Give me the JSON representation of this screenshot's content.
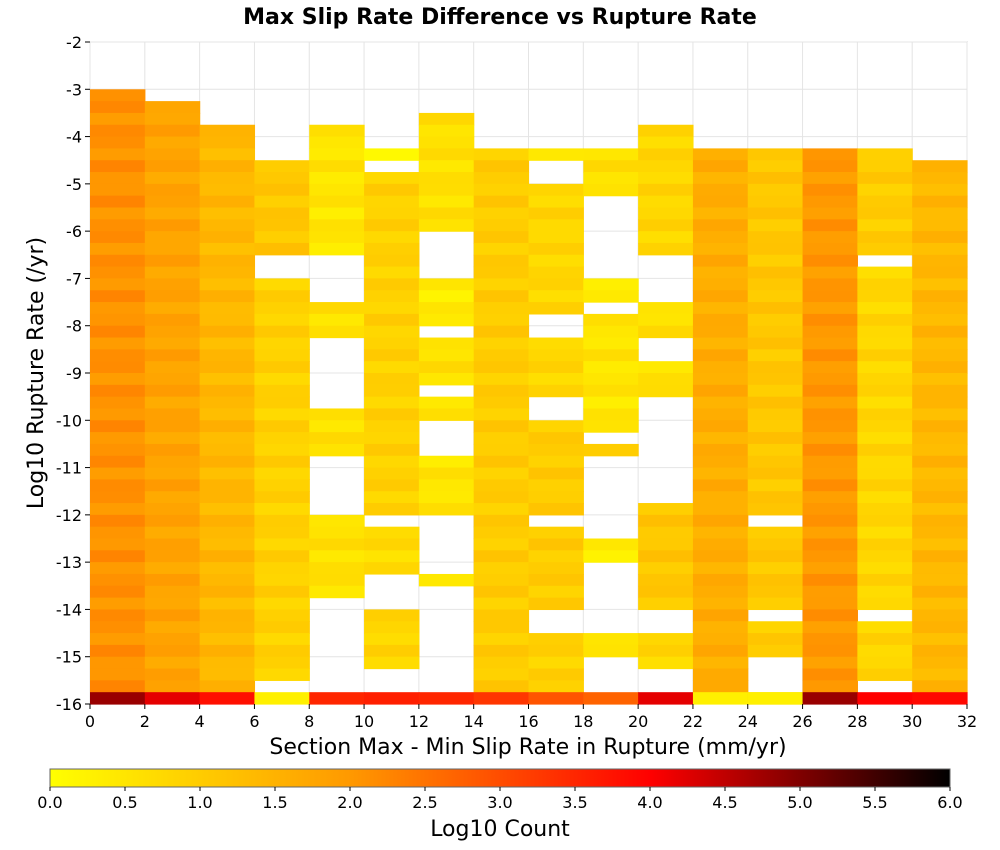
{
  "chart_data": {
    "type": "heatmap",
    "title": "Max Slip Rate Difference vs Rupture Rate",
    "xlabel": "Section Max - Min Slip Rate in Rupture (mm/yr)",
    "ylabel": "Log10 Rupture Rate (/yr)",
    "xlim": [
      0,
      32
    ],
    "ylim": [
      -16,
      -2
    ],
    "x_ticks": [
      "0",
      "2",
      "4",
      "6",
      "8",
      "10",
      "12",
      "14",
      "16",
      "18",
      "20",
      "22",
      "24",
      "26",
      "28",
      "30",
      "32"
    ],
    "y_ticks": [
      "-2",
      "-3",
      "-4",
      "-5",
      "-6",
      "-7",
      "-8",
      "-9",
      "-10",
      "-11",
      "-12",
      "-13",
      "-14",
      "-15",
      "-16"
    ],
    "x_bin_width": 2,
    "y_bin_height": 0.25,
    "grid": true,
    "colorbar": {
      "label": "Log10 Count",
      "range": [
        0,
        6
      ],
      "ticks": [
        "0.0",
        "0.5",
        "1.0",
        "1.5",
        "2.0",
        "2.5",
        "3.0",
        "3.5",
        "4.0",
        "4.5",
        "5.0",
        "5.5",
        "6.0"
      ],
      "colors": [
        "#ffff00",
        "#ff9900",
        "#ff0000",
        "#000000"
      ]
    },
    "columns": [
      {
        "x": [
          0,
          2
        ],
        "runs": [
          [
            -3,
            -15.75,
            2.1
          ]
        ],
        "bottom": 4.8
      },
      {
        "x": [
          2,
          4
        ],
        "runs": [
          [
            -3.25,
            -15.75,
            1.8
          ]
        ],
        "bottom": 4.2
      },
      {
        "x": [
          4,
          6
        ],
        "runs": [
          [
            -3.75,
            -15.75,
            1.4
          ]
        ],
        "bottom": 3.8
      },
      {
        "x": [
          6,
          8
        ],
        "runs": [
          [
            -4.5,
            -6.5,
            1.1
          ],
          [
            -7,
            -15.5,
            0.9
          ]
        ],
        "bottom": 0.3
      },
      {
        "x": [
          8,
          10
        ],
        "runs": [
          [
            -3.75,
            -6.5,
            0.5
          ],
          [
            -7.5,
            -8.25,
            0.6
          ],
          [
            -9.75,
            -10.75,
            0.6
          ],
          [
            -12,
            -13.75,
            0.6
          ]
        ],
        "bottom": 3.5
      },
      {
        "x": [
          10,
          12
        ],
        "runs": [
          [
            -4.25,
            -4.5,
            0.3
          ],
          [
            -4.75,
            -12,
            0.9
          ],
          [
            -12.25,
            -13.25,
            0.7
          ],
          [
            -14,
            -15.25,
            0.8
          ]
        ],
        "bottom": 3.6
      },
      {
        "x": [
          12,
          14
        ],
        "runs": [
          [
            -3.5,
            -6,
            0.6
          ],
          [
            -7,
            -8,
            0.4
          ],
          [
            -8.25,
            -9.25,
            0.6
          ],
          [
            -9.5,
            -10,
            0.6
          ],
          [
            -10.75,
            -12,
            0.5
          ],
          [
            -13.25,
            -13.5,
            0.5
          ]
        ],
        "bottom": 3.5
      },
      {
        "x": [
          14,
          16
        ],
        "runs": [
          [
            -4.25,
            -15.75,
            1.0
          ]
        ],
        "bottom": 3.3
      },
      {
        "x": [
          16,
          18
        ],
        "runs": [
          [
            -4.25,
            -4.5,
            0.3
          ],
          [
            -5,
            -7.75,
            0.8
          ],
          [
            -8.25,
            -9.5,
            0.8
          ],
          [
            -10,
            -12,
            1.0
          ],
          [
            -12.25,
            -14,
            1.0
          ],
          [
            -14.5,
            -15.75,
            0.9
          ]
        ],
        "bottom": 2.9
      },
      {
        "x": [
          18,
          20
        ],
        "runs": [
          [
            -4.25,
            -5.25,
            0.6
          ],
          [
            -7,
            -7.5,
            0.3
          ],
          [
            -7.75,
            -10.25,
            0.5
          ],
          [
            -10.5,
            -10.75,
            0.8
          ],
          [
            -12.5,
            -13,
            0.4
          ],
          [
            -14.5,
            -15,
            0.6
          ]
        ],
        "bottom": 2.7
      },
      {
        "x": [
          20,
          22
        ],
        "runs": [
          [
            -3.75,
            -6.5,
            0.8
          ],
          [
            -7.5,
            -8.25,
            0.6
          ],
          [
            -8.75,
            -9.5,
            0.6
          ],
          [
            -11.75,
            -14,
            1.1
          ],
          [
            -14.5,
            -15.25,
            0.8
          ]
        ],
        "bottom": 4.2
      },
      {
        "x": [
          22,
          24
        ],
        "runs": [
          [
            -4.25,
            -15.75,
            1.6
          ]
        ],
        "bottom": 0.3
      },
      {
        "x": [
          24,
          26
        ],
        "runs": [
          [
            -4.25,
            -12,
            1.1
          ],
          [
            -12.25,
            -14,
            1.1
          ],
          [
            -14.25,
            -15,
            1.0
          ],
          [
            -15.75,
            -16,
            0.9
          ]
        ],
        "bottom": 0.3
      },
      {
        "x": [
          26,
          28
        ],
        "runs": [
          [
            -4.25,
            -15.75,
            2.0
          ]
        ],
        "bottom": 4.8
      },
      {
        "x": [
          28,
          30
        ],
        "runs": [
          [
            -4.25,
            -6.5,
            1.0
          ],
          [
            -6.75,
            -14,
            0.8
          ],
          [
            -14.25,
            -15.5,
            0.8
          ]
        ],
        "bottom": 4.0
      },
      {
        "x": [
          30,
          32
        ],
        "runs": [
          [
            -4.5,
            -15.75,
            1.4
          ]
        ],
        "bottom": 3.9
      }
    ]
  }
}
